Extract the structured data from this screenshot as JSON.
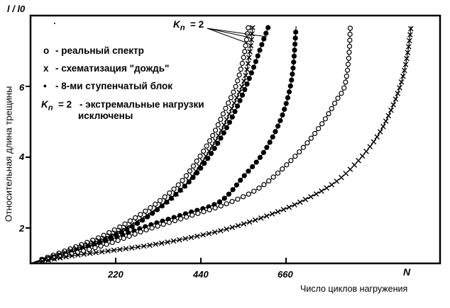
{
  "chart_data": {
    "type": "line",
    "title": "",
    "xlabel": "Число циклов нагружения",
    "ylabel": "Относительная длина трещины",
    "ylabel_top": "l / l0",
    "x_end_label": "N",
    "xlim": [
      0,
      1060
    ],
    "ylim": [
      1,
      8
    ],
    "xticks": [
      220,
      440,
      660
    ],
    "xtick_labels": [
      "220",
      "440",
      "660"
    ],
    "yticks": [
      2,
      4,
      6
    ],
    "ytick_labels": [
      "2",
      "4",
      "6"
    ],
    "grid": false,
    "legend_placement": "top-left",
    "legend": [
      {
        "marker": "open-circle",
        "symbol": "o",
        "label": "- реальный спектр"
      },
      {
        "marker": "cross",
        "symbol": "x",
        "label": "- схематизация \"дождь\""
      },
      {
        "marker": "filled-circle",
        "symbol": "•",
        "label": "- 8-ми ступенчатый блок"
      }
    ],
    "kn_note": {
      "k": "K",
      "sub": "n",
      "eq": "= 2",
      "line1": "- экстремальные нагрузки",
      "line2": "исключены"
    },
    "annotation": {
      "k": "K",
      "sub": "n",
      "eq": "= 2"
    },
    "series": [
      {
        "name": "реальный спектр, Kn=2",
        "marker": "open-circle",
        "points": [
          [
            0,
            1
          ],
          [
            100,
            1.4
          ],
          [
            200,
            1.85
          ],
          [
            300,
            2.5
          ],
          [
            380,
            3.2
          ],
          [
            430,
            3.9
          ],
          [
            470,
            4.6
          ],
          [
            505,
            5.4
          ],
          [
            530,
            6.0
          ],
          [
            550,
            6.8
          ],
          [
            563,
            7.7
          ]
        ]
      },
      {
        "name": "схематизация дождь, Kn=2",
        "marker": "cross",
        "points": [
          [
            0,
            1
          ],
          [
            100,
            1.35
          ],
          [
            200,
            1.75
          ],
          [
            300,
            2.35
          ],
          [
            390,
            3.1
          ],
          [
            445,
            3.9
          ],
          [
            490,
            4.7
          ],
          [
            525,
            5.5
          ],
          [
            553,
            6.2
          ],
          [
            567,
            7.0
          ],
          [
            574,
            7.7
          ]
        ]
      },
      {
        "name": "8-ми ступенчатый блок, Kn=2",
        "marker": "filled-circle",
        "points": [
          [
            0,
            1
          ],
          [
            100,
            1.3
          ],
          [
            200,
            1.7
          ],
          [
            300,
            2.3
          ],
          [
            400,
            3.2
          ],
          [
            460,
            4.0
          ],
          [
            510,
            4.9
          ],
          [
            545,
            5.7
          ],
          [
            575,
            6.5
          ],
          [
            598,
            7.2
          ],
          [
            615,
            7.7
          ]
        ]
      },
      {
        "name": "8-ми ступенчатый блок",
        "marker": "filled-circle",
        "points": [
          [
            0,
            1
          ],
          [
            100,
            1.3
          ],
          [
            200,
            1.65
          ],
          [
            300,
            2.05
          ],
          [
            400,
            2.4
          ],
          [
            490,
            2.75
          ],
          [
            550,
            3.45
          ],
          [
            600,
            4.1
          ],
          [
            640,
            4.9
          ],
          [
            665,
            5.7
          ],
          [
            678,
            6.5
          ],
          [
            686,
            7.7
          ]
        ]
      },
      {
        "name": "реальный спектр",
        "marker": "open-circle",
        "points": [
          [
            0,
            1
          ],
          [
            100,
            1.25
          ],
          [
            200,
            1.55
          ],
          [
            300,
            1.95
          ],
          [
            400,
            2.3
          ],
          [
            510,
            2.7
          ],
          [
            600,
            3.2
          ],
          [
            690,
            4.1
          ],
          [
            750,
            4.9
          ],
          [
            790,
            5.6
          ],
          [
            811,
            6.0
          ],
          [
            822,
            6.8
          ],
          [
            826,
            7.7
          ]
        ]
      },
      {
        "name": "схематизация дождь",
        "marker": "cross",
        "points": [
          [
            0,
            1
          ],
          [
            100,
            1.2
          ],
          [
            200,
            1.35
          ],
          [
            300,
            1.5
          ],
          [
            400,
            1.7
          ],
          [
            500,
            1.95
          ],
          [
            600,
            2.3
          ],
          [
            700,
            2.75
          ],
          [
            800,
            3.4
          ],
          [
            884,
            4.4
          ],
          [
            930,
            5.3
          ],
          [
            960,
            6.2
          ],
          [
            975,
            7.0
          ],
          [
            983,
            7.7
          ]
        ]
      }
    ]
  }
}
